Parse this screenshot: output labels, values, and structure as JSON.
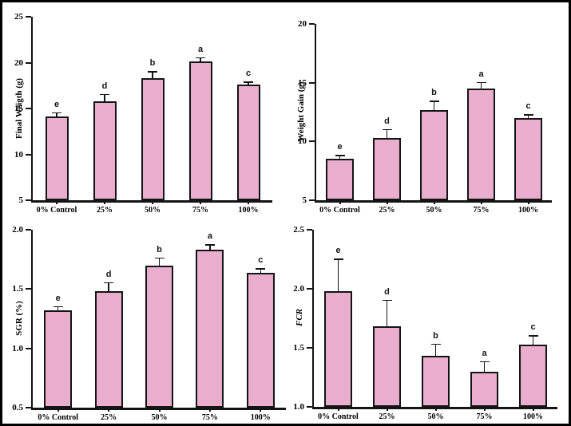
{
  "figure": {
    "background": "#ffffff",
    "border_color": "#000000",
    "bar_fill": "#E9AECE",
    "bar_border": "#141414",
    "error_bar_color": "#141414"
  },
  "chart_data": [
    {
      "type": "bar",
      "panel": "top-left",
      "title": "",
      "xlabel": "",
      "ylabel": "Final Weigth (g)",
      "categories": [
        "0% Control",
        "25%",
        "50%",
        "75%",
        "100%"
      ],
      "values": [
        14.1,
        15.8,
        18.3,
        20.1,
        17.6
      ],
      "errors": [
        0.4,
        0.7,
        0.7,
        0.4,
        0.25
      ],
      "letters": [
        "e",
        "d",
        "b",
        "a",
        "c"
      ],
      "ylim": [
        5,
        25
      ],
      "yticks": [
        5,
        10,
        15,
        20,
        25
      ],
      "ytick_labels": [
        "5",
        "10",
        "15",
        "20",
        "25"
      ],
      "grid": false,
      "legend": false
    },
    {
      "type": "bar",
      "panel": "top-right",
      "title": "",
      "xlabel": "",
      "ylabel": "Weight Gain (g)",
      "categories": [
        "0% Control",
        "25%",
        "50%",
        "75%",
        "100%"
      ],
      "values": [
        8.5,
        10.3,
        12.7,
        14.5,
        12.0
      ],
      "errors": [
        0.3,
        0.7,
        0.7,
        0.5,
        0.25
      ],
      "letters": [
        "e",
        "d",
        "b",
        "a",
        "c"
      ],
      "ylim": [
        5,
        20
      ],
      "yticks": [
        5,
        10,
        15,
        20
      ],
      "ytick_labels": [
        "5",
        "10",
        "15",
        "20"
      ],
      "grid": false,
      "legend": false
    },
    {
      "type": "bar",
      "panel": "bottom-left",
      "title": "",
      "xlabel": "",
      "ylabel": "SGR (%)",
      "categories": [
        "0% Control",
        "25%",
        "50%",
        "75%",
        "100%"
      ],
      "values": [
        1.32,
        1.48,
        1.7,
        1.83,
        1.64
      ],
      "errors": [
        0.03,
        0.07,
        0.06,
        0.04,
        0.03
      ],
      "letters": [
        "e",
        "d",
        "b",
        "a",
        "c"
      ],
      "ylim": [
        0.5,
        2.0
      ],
      "yticks": [
        0.5,
        1.0,
        1.5,
        2.0
      ],
      "ytick_labels": [
        "0.5",
        "1.0",
        "1.5",
        "2.0"
      ],
      "grid": false,
      "legend": false
    },
    {
      "type": "bar",
      "panel": "bottom-right",
      "title": "",
      "xlabel": "",
      "ylabel": "FCR",
      "ylabel_italic": true,
      "categories": [
        "0% Control",
        "25%",
        "50%",
        "75%",
        "100%"
      ],
      "values": [
        1.98,
        1.68,
        1.43,
        1.3,
        1.53
      ],
      "errors": [
        0.27,
        0.22,
        0.1,
        0.08,
        0.07
      ],
      "letters": [
        "e",
        "d",
        "b",
        "a",
        "c"
      ],
      "ylim": [
        1.0,
        2.5
      ],
      "yticks": [
        1.0,
        1.5,
        2.0,
        2.5
      ],
      "ytick_labels": [
        "1.0",
        "1.5",
        "2.0",
        "2.5"
      ],
      "grid": false,
      "legend": false
    }
  ]
}
